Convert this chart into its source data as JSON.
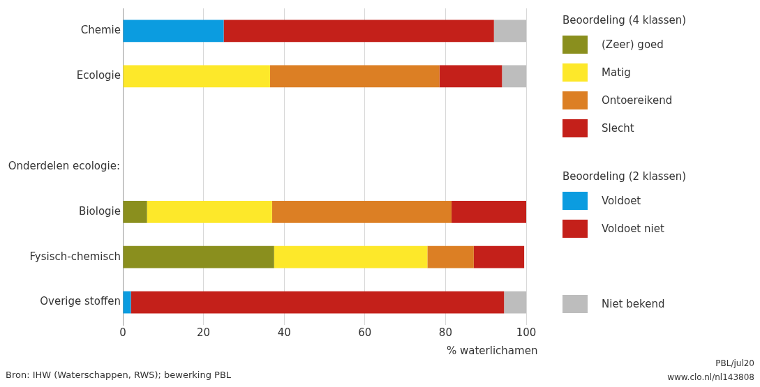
{
  "chart_data": {
    "type": "bar",
    "orientation": "horizontal",
    "stacked": true,
    "categories": [
      "Chemie",
      "Ecologie",
      null,
      null,
      "Biologie",
      "Fysisch-chemisch",
      "Overige stoffen"
    ],
    "series": [
      {
        "name": "(Zeer) goed",
        "color": "#8a8f1e",
        "values": [
          null,
          null,
          null,
          null,
          6,
          37.5,
          null
        ]
      },
      {
        "name": "Matig",
        "color": "#fde82a",
        "values": [
          null,
          36.5,
          null,
          null,
          31,
          38,
          null
        ]
      },
      {
        "name": "Ontoereikend",
        "color": "#dc7f24",
        "values": [
          null,
          42,
          null,
          null,
          44.5,
          11.5,
          null
        ]
      },
      {
        "name": "Slecht",
        "color": "#c4201a",
        "values": [
          null,
          15.5,
          null,
          null,
          18.5,
          12.5,
          null
        ]
      },
      {
        "name": "Voldoet",
        "color": "#0b9ce0",
        "values": [
          25,
          null,
          null,
          null,
          null,
          null,
          2
        ]
      },
      {
        "name": "Voldoet niet",
        "color": "#c4201a",
        "values": [
          67,
          null,
          null,
          null,
          null,
          null,
          92.5
        ]
      },
      {
        "name": "Niet bekend",
        "color": "#bdbdbd",
        "values": [
          8,
          6,
          null,
          null,
          null,
          null,
          5.5
        ]
      }
    ],
    "xlim": [
      0,
      100
    ],
    "xticks": [
      0,
      20,
      40,
      60,
      80,
      100
    ],
    "xlabel": "% waterlichamen",
    "grid": "x",
    "legend": "right",
    "legend_title": "Beoordeling (4 klassen)",
    "annotations": [
      "Beoordeling (2 klassen)",
      "Bron: IHW (Waterschappen, RWS); bewerking PBL",
      "PBL/jul20",
      "www.clo.nl/nl143808",
      "Onderdelen ecologie:"
    ]
  }
}
